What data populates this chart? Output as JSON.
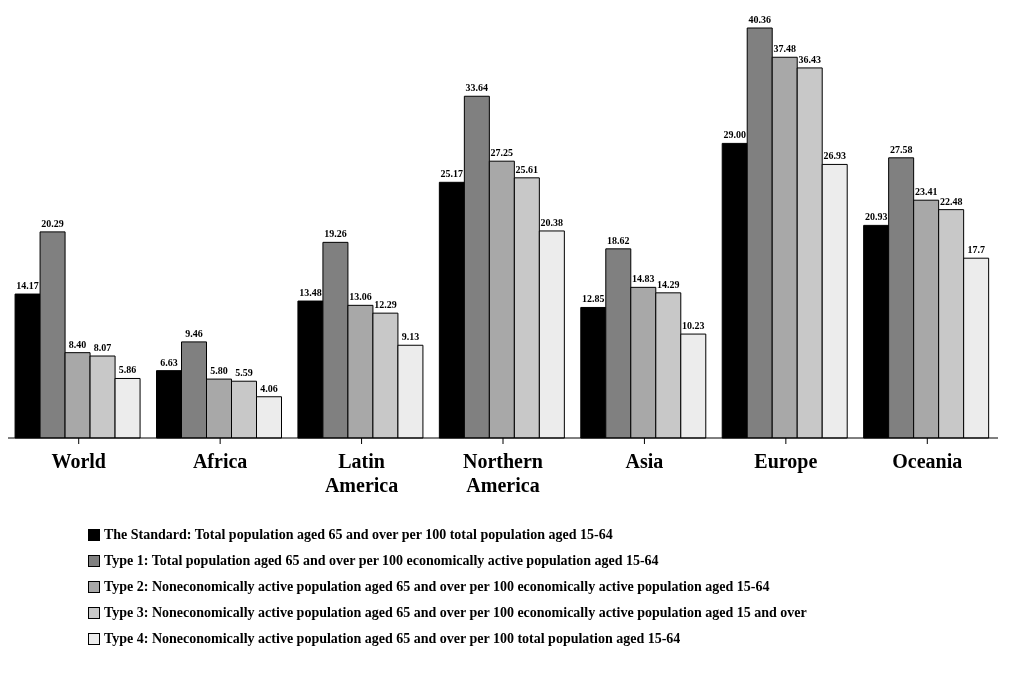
{
  "chart_data": {
    "type": "bar",
    "categories": [
      "World",
      "Africa",
      "Latin America",
      "Northern America",
      "Asia",
      "Europe",
      "Oceania"
    ],
    "series": [
      {
        "name": "The Standard: Total population aged 65 and over per 100 total population aged 15-64",
        "color": "#000000",
        "values": [
          14.17,
          6.63,
          13.48,
          25.17,
          12.85,
          29.0,
          20.93
        ],
        "value_labels": [
          "14.17",
          "6.63",
          "13.48",
          "25.17",
          "12.85",
          "29.00",
          "20.93"
        ]
      },
      {
        "name": "Type 1: Total population aged 65 and over per 100 economically active population aged 15-64",
        "color": "#808080",
        "values": [
          20.29,
          9.46,
          19.26,
          33.64,
          18.62,
          40.36,
          27.58
        ],
        "value_labels": [
          "20.29",
          "9.46",
          "19.26",
          "33.64",
          "18.62",
          "40.36",
          "27.58"
        ]
      },
      {
        "name": "Type 2: Noneconomically active population aged 65 and over per 100 economically active population aged 15-64",
        "color": "#a8a8a8",
        "values": [
          8.4,
          5.8,
          13.06,
          27.25,
          14.83,
          37.48,
          23.41
        ],
        "value_labels": [
          "8.40",
          "5.80",
          "13.06",
          "27.25",
          "14.83",
          "37.48",
          "23.41"
        ]
      },
      {
        "name": "Type 3: Noneconomically active population aged 65 and over per 100 economically active population aged 15 and over",
        "color": "#c8c8c8",
        "values": [
          8.07,
          5.59,
          12.29,
          25.61,
          14.29,
          36.43,
          22.48
        ],
        "value_labels": [
          "8.07",
          "5.59",
          "12.29",
          "25.61",
          "14.29",
          "36.43",
          "22.48"
        ]
      },
      {
        "name": "Type 4: Noneconomically active population aged 65 and over per 100 total population aged 15-64",
        "color": "#ececec",
        "values": [
          5.86,
          4.06,
          9.13,
          20.38,
          10.23,
          26.93,
          17.7
        ],
        "value_labels": [
          "5.86",
          "4.06",
          "9.13",
          "20.38",
          "10.23",
          "26.93",
          "17.7"
        ]
      }
    ],
    "legend": "bottom",
    "grid": false
  }
}
